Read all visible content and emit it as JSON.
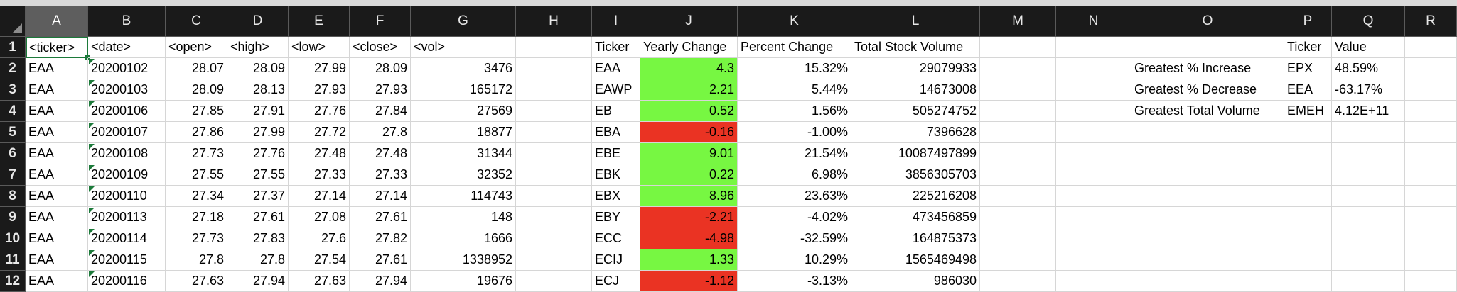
{
  "columns": [
    "A",
    "B",
    "C",
    "D",
    "E",
    "F",
    "G",
    "H",
    "I",
    "J",
    "K",
    "L",
    "M",
    "N",
    "O",
    "P",
    "Q",
    "R"
  ],
  "selected_column": "A",
  "active_cell": "A1",
  "rows": [
    [
      "<ticker>",
      "<date>",
      "<open>",
      "<high>",
      "<low>",
      "<close>",
      "<vol>",
      "",
      "Ticker",
      "Yearly Change",
      "Percent Change",
      "Total Stock Volume",
      "",
      "",
      "",
      "Ticker",
      "Value",
      ""
    ],
    [
      "EAA",
      "20200102",
      "28.07",
      "28.09",
      "27.99",
      "28.09",
      "3476",
      "",
      "EAA",
      "4.3",
      "15.32%",
      "29079933",
      "",
      "",
      "Greatest % Increase",
      "EPX",
      "48.59%",
      ""
    ],
    [
      "EAA",
      "20200103",
      "28.09",
      "28.13",
      "27.93",
      "27.93",
      "165172",
      "",
      "EAWP",
      "2.21",
      "5.44%",
      "14673008",
      "",
      "",
      "Greatest % Decrease",
      "EEA",
      "-63.17%",
      ""
    ],
    [
      "EAA",
      "20200106",
      "27.85",
      "27.91",
      "27.76",
      "27.84",
      "27569",
      "",
      "EB",
      "0.52",
      "1.56%",
      "505274752",
      "",
      "",
      "Greatest Total Volume",
      "EMEH",
      "4.12E+11",
      ""
    ],
    [
      "EAA",
      "20200107",
      "27.86",
      "27.99",
      "27.72",
      "27.8",
      "18877",
      "",
      "EBA",
      "-0.16",
      "-1.00%",
      "7396628",
      "",
      "",
      "",
      "",
      "",
      ""
    ],
    [
      "EAA",
      "20200108",
      "27.73",
      "27.76",
      "27.48",
      "27.48",
      "31344",
      "",
      "EBE",
      "9.01",
      "21.54%",
      "10087497899",
      "",
      "",
      "",
      "",
      "",
      ""
    ],
    [
      "EAA",
      "20200109",
      "27.55",
      "27.55",
      "27.33",
      "27.33",
      "32352",
      "",
      "EBK",
      "0.22",
      "6.98%",
      "3856305703",
      "",
      "",
      "",
      "",
      "",
      ""
    ],
    [
      "EAA",
      "20200110",
      "27.34",
      "27.37",
      "27.14",
      "27.14",
      "114743",
      "",
      "EBX",
      "8.96",
      "23.63%",
      "225216208",
      "",
      "",
      "",
      "",
      "",
      ""
    ],
    [
      "EAA",
      "20200113",
      "27.18",
      "27.61",
      "27.08",
      "27.61",
      "148",
      "",
      "EBY",
      "-2.21",
      "-4.02%",
      "473456859",
      "",
      "",
      "",
      "",
      "",
      ""
    ],
    [
      "EAA",
      "20200114",
      "27.73",
      "27.83",
      "27.6",
      "27.82",
      "1666",
      "",
      "ECC",
      "-4.98",
      "-32.59%",
      "164875373",
      "",
      "",
      "",
      "",
      "",
      ""
    ],
    [
      "EAA",
      "20200115",
      "27.8",
      "27.8",
      "27.54",
      "27.61",
      "1338952",
      "",
      "ECIJ",
      "1.33",
      "10.29%",
      "1565469498",
      "",
      "",
      "",
      "",
      "",
      ""
    ],
    [
      "EAA",
      "20200116",
      "27.63",
      "27.94",
      "27.63",
      "27.94",
      "19676",
      "",
      "ECJ",
      "-1.12",
      "-3.13%",
      "986030",
      "",
      "",
      "",
      "",
      "",
      ""
    ]
  ],
  "colors": {
    "positive_fill": "#77f742",
    "negative_fill": "#ea3323",
    "header_bg": "#1a1a1a",
    "selection_border": "#1c7a3a"
  }
}
